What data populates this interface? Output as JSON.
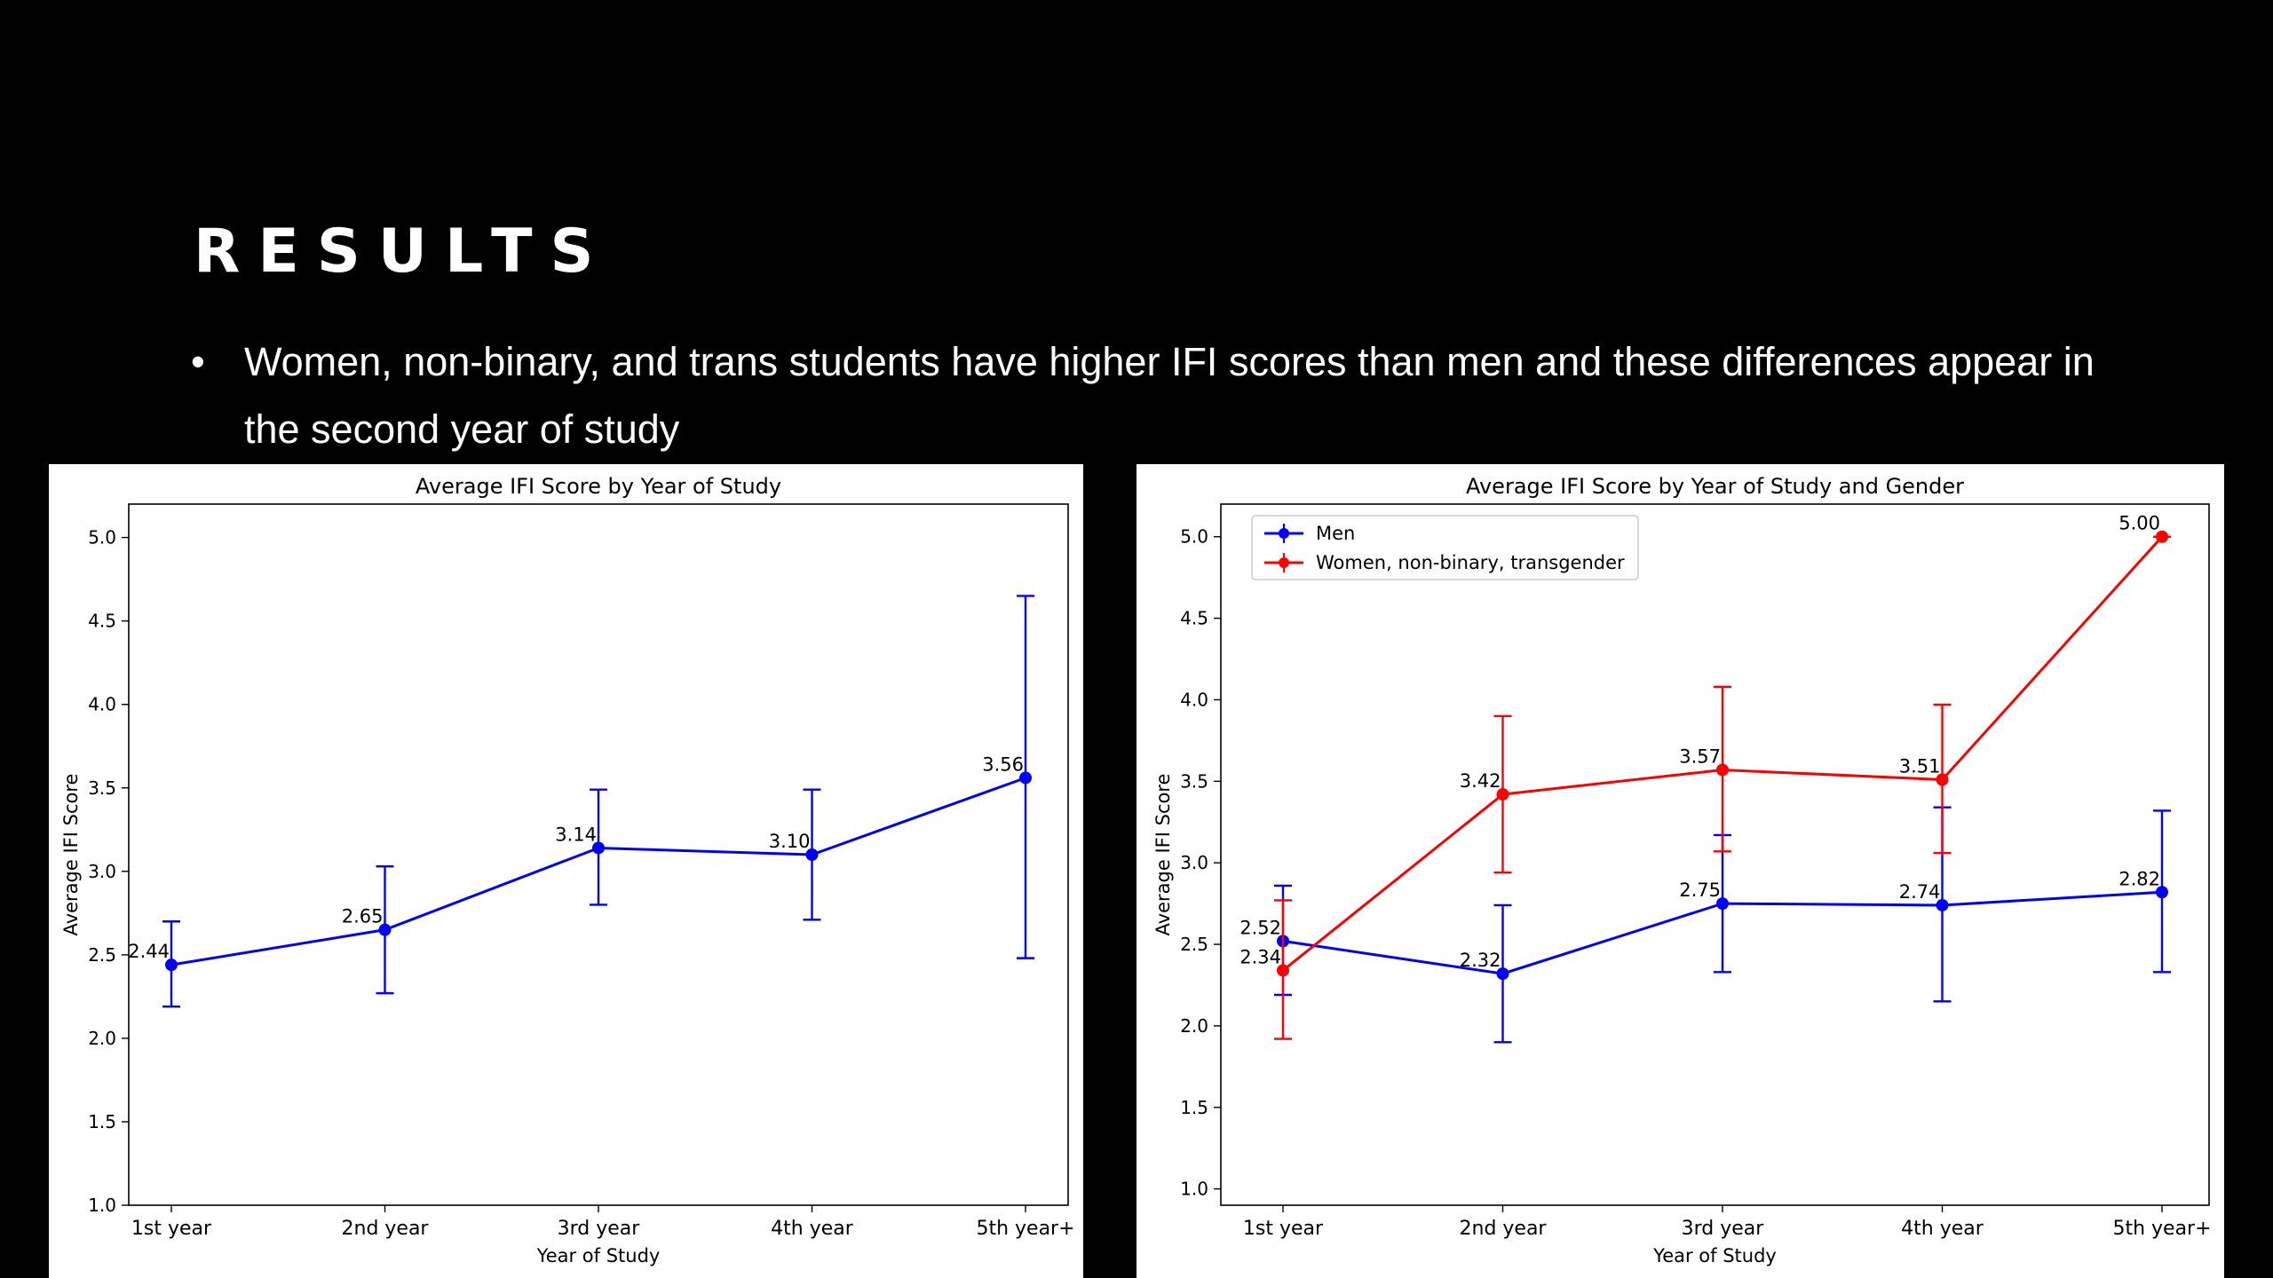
{
  "slide": {
    "title": "RESULTS",
    "bullet": "Women, non-binary, and trans students have higher IFI scores than men and these differences appear in the second year of study"
  },
  "colors": {
    "background": "#000000",
    "men": "#0000ff",
    "women": "#ff0000"
  },
  "chart_data": [
    {
      "type": "line",
      "title": "Average IFI Score by Year of Study",
      "xlabel": "Year of Study",
      "ylabel": "Average IFI Score",
      "categories": [
        "1st year",
        "2nd year",
        "3rd year",
        "4th year",
        "5th year+"
      ],
      "ylim": [
        1.0,
        5.2
      ],
      "yticks": [
        "1.0",
        "1.5",
        "2.0",
        "2.5",
        "3.0",
        "3.5",
        "4.0",
        "4.5",
        "5.0"
      ],
      "grid": false,
      "series": [
        {
          "color": "#0000ff",
          "values": [
            2.44,
            2.65,
            3.14,
            3.1,
            3.56
          ],
          "labels": [
            "2.44",
            "2.65",
            "3.14",
            "3.10",
            "3.56"
          ],
          "error_low": [
            2.19,
            2.27,
            2.8,
            2.71,
            2.48
          ],
          "error_high": [
            2.7,
            3.03,
            3.49,
            3.49,
            4.65
          ]
        }
      ]
    },
    {
      "type": "line",
      "title": "Average IFI Score by Year of Study and Gender",
      "xlabel": "Year of Study",
      "ylabel": "Average IFI Score",
      "categories": [
        "1st year",
        "2nd year",
        "3rd year",
        "4th year",
        "5th year+"
      ],
      "ylim": [
        0.9,
        5.2
      ],
      "yticks": [
        "1.0",
        "1.5",
        "2.0",
        "2.5",
        "3.0",
        "3.5",
        "4.0",
        "4.5",
        "5.0"
      ],
      "grid": false,
      "legend": "top-left",
      "series": [
        {
          "name": "Men",
          "color": "#0000ff",
          "values": [
            2.52,
            2.32,
            2.75,
            2.74,
            2.82
          ],
          "labels": [
            "2.52",
            "2.32",
            "2.75",
            "2.74",
            "2.82"
          ],
          "error_low": [
            2.19,
            1.9,
            2.33,
            2.15,
            2.33
          ],
          "error_high": [
            2.86,
            2.74,
            3.17,
            3.34,
            3.32
          ]
        },
        {
          "name": "Women, non-binary, transgender",
          "color": "#ff0000",
          "values": [
            2.34,
            3.42,
            3.57,
            3.51,
            5.0
          ],
          "labels": [
            "2.34",
            "3.42",
            "3.57",
            "3.51",
            "5.00"
          ],
          "error_low": [
            1.92,
            2.94,
            3.07,
            3.06,
            5.0
          ],
          "error_high": [
            2.77,
            3.9,
            4.08,
            3.97,
            5.0
          ]
        }
      ]
    }
  ]
}
